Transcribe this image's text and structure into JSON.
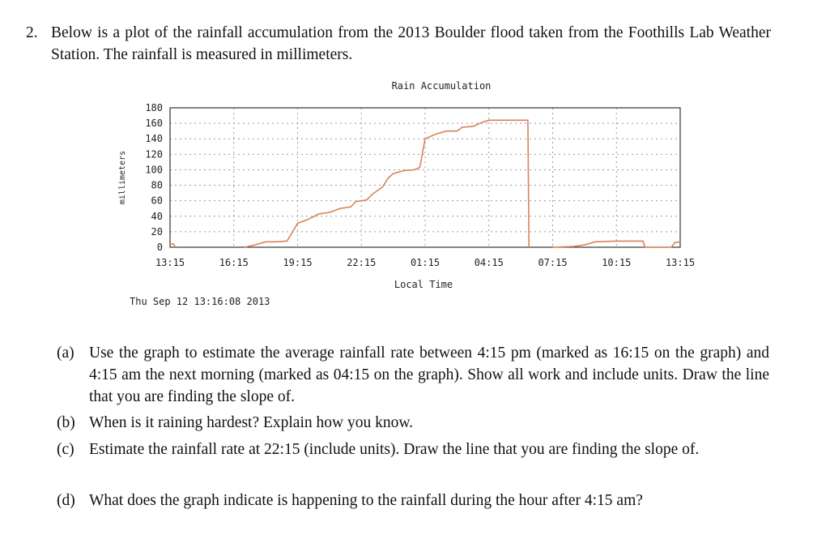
{
  "problem": {
    "number": "2.",
    "text": "Below is a plot of the rainfall accumulation from the 2013 Boulder flood taken from the Foothills Lab Weather Station. The rainfall is measured in millimeters."
  },
  "chart_data": {
    "type": "line",
    "title": "Rain Accumulation",
    "xlabel": "Local Time",
    "ylabel": "millimeters",
    "timestamp": "Thu Sep 12 13:16:08 2013",
    "ylim": [
      0,
      180
    ],
    "yticks": [
      "0",
      "20",
      "40",
      "60",
      "80",
      "100",
      "120",
      "140",
      "160",
      "180"
    ],
    "xticks": [
      "13:15",
      "16:15",
      "19:15",
      "22:15",
      "01:15",
      "04:15",
      "07:15",
      "10:15",
      "13:15"
    ],
    "grid": true,
    "line_color": "#d9825a",
    "series": [
      {
        "segments": [
          [
            [
              "13:15",
              4
            ],
            [
              "13:25",
              4
            ],
            [
              "13:30",
              0
            ]
          ],
          [
            [
              "16:45",
              0
            ],
            [
              "17:15",
              3
            ],
            [
              "17:45",
              7
            ],
            [
              "18:15",
              7
            ],
            [
              "18:45",
              8
            ],
            [
              "19:00",
              19
            ],
            [
              "19:15",
              31
            ],
            [
              "19:45",
              36
            ],
            [
              "20:15",
              43
            ],
            [
              "20:45",
              45
            ],
            [
              "21:15",
              50
            ],
            [
              "21:45",
              52
            ],
            [
              "22:00",
              59
            ],
            [
              "22:30",
              61
            ],
            [
              "22:45",
              68
            ],
            [
              "23:15",
              78
            ],
            [
              "23:30",
              89
            ],
            [
              "23:45",
              95
            ],
            [
              "00:15",
              99
            ],
            [
              "00:45",
              100
            ],
            [
              "01:00",
              103
            ],
            [
              "01:15",
              140
            ],
            [
              "01:45",
              146
            ],
            [
              "02:15",
              150
            ],
            [
              "02:45",
              150
            ],
            [
              "03:00",
              155
            ],
            [
              "03:30",
              156
            ],
            [
              "04:00",
              162
            ],
            [
              "04:15",
              164
            ],
            [
              "06:05",
              164
            ],
            [
              "06:08",
              0
            ]
          ],
          [
            [
              "07:15",
              0
            ],
            [
              "08:15",
              1
            ],
            [
              "08:45",
              3
            ],
            [
              "09:15",
              7
            ],
            [
              "10:15",
              8
            ],
            [
              "11:30",
              8
            ],
            [
              "11:35",
              0
            ],
            [
              "12:50",
              0
            ],
            [
              "13:00",
              6
            ],
            [
              "13:15",
              7
            ]
          ]
        ]
      }
    ]
  },
  "questions": [
    {
      "label": "(a)",
      "text": "Use the graph to estimate the average rainfall rate between 4:15 pm (marked as 16:15 on the graph) and 4:15 am the next morning (marked as 04:15 on the graph). Show all work and include units. Draw the line that you are finding the slope of."
    },
    {
      "label": "(b)",
      "text": "When is it raining hardest? Explain how you know."
    },
    {
      "label": "(c)",
      "text": "Estimate the rainfall rate at 22:15 (include units). Draw the line that you are finding the slope of."
    },
    {
      "label": "(d)",
      "text": "What does the graph indicate is happening to the rainfall during the hour after 4:15 am?"
    }
  ]
}
